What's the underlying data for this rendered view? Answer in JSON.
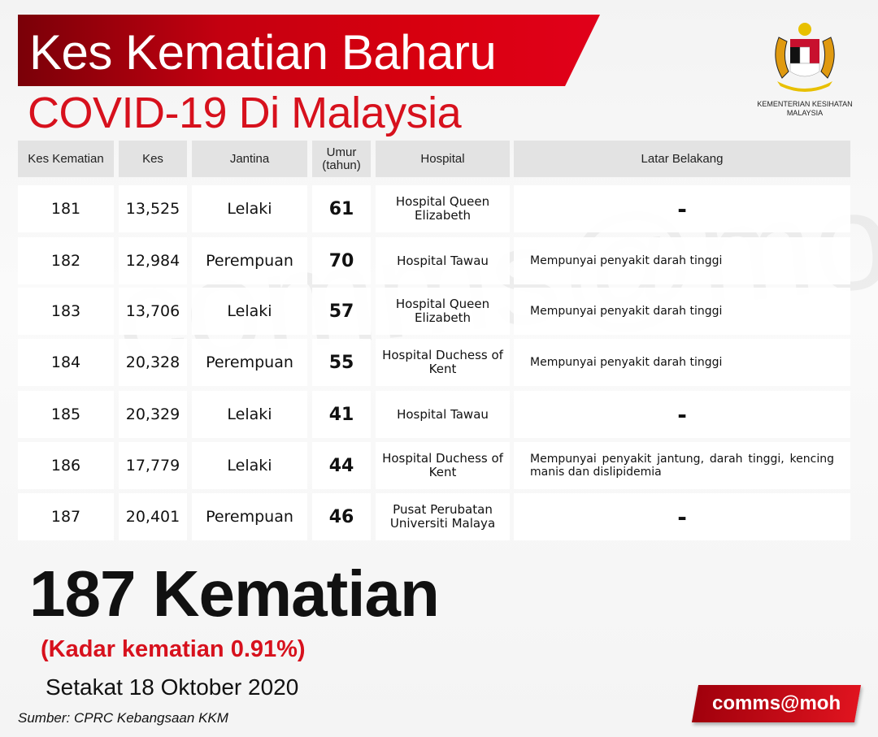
{
  "header": {
    "title_line1": "Kes Kematian Baharu",
    "title_line2": "COVID-19 Di Malaysia",
    "ministry": "KEMENTERIAN KESIHATAN MALAYSIA"
  },
  "watermark": "comms@moh",
  "table": {
    "columns": [
      "Kes Kematian",
      "Kes",
      "Jantina",
      "Umur (tahun)",
      "Hospital",
      "Latar Belakang"
    ],
    "rows": [
      [
        "181",
        "13,525",
        "Lelaki",
        "61",
        "Hospital Queen Elizabeth",
        "-"
      ],
      [
        "182",
        "12,984",
        "Perempuan",
        "70",
        "Hospital Tawau",
        "Mempunyai penyakit darah tinggi"
      ],
      [
        "183",
        "13,706",
        "Lelaki",
        "57",
        "Hospital Queen Elizabeth",
        "Mempunyai penyakit darah tinggi"
      ],
      [
        "184",
        "20,328",
        "Perempuan",
        "55",
        "Hospital Duchess of Kent",
        "Mempunyai penyakit darah tinggi"
      ],
      [
        "185",
        "20,329",
        "Lelaki",
        "41",
        "Hospital Tawau",
        "-"
      ],
      [
        "186",
        "17,779",
        "Lelaki",
        "44",
        "Hospital Duchess of Kent",
        "Mempunyai penyakit jantung, darah tinggi, kencing manis dan dislipidemia"
      ],
      [
        "187",
        "20,401",
        "Perempuan",
        "46",
        "Pusat Perubatan Universiti Malaya",
        "-"
      ]
    ]
  },
  "summary": {
    "deaths": "187 Kematian",
    "rate": "(Kadar kematian 0.91%)",
    "date": "Setakat 18 Oktober 2020",
    "source": "Sumber: CPRC Kebangsaan KKM",
    "badge": "comms@moh"
  },
  "colors": {
    "accent": "#d7111d",
    "header_bg": "#e3e3e3"
  }
}
